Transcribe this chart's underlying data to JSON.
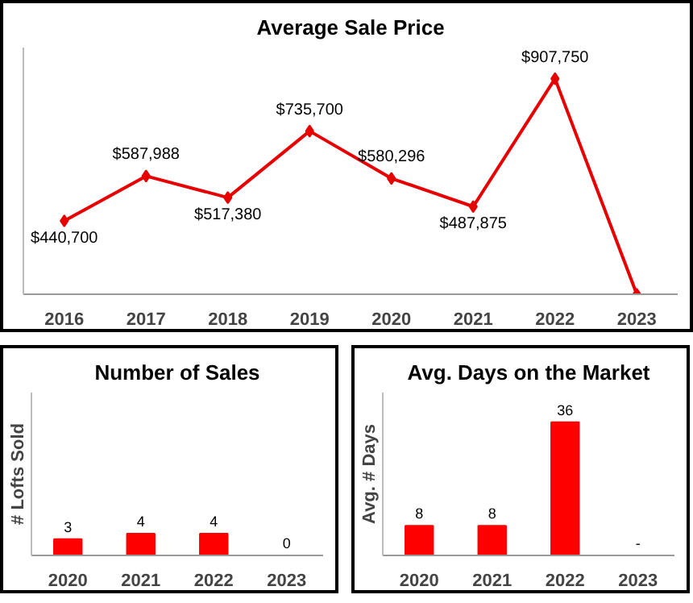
{
  "chart_data": [
    {
      "type": "line",
      "title": "Average Sale Price",
      "categories": [
        "2016",
        "2017",
        "2018",
        "2019",
        "2020",
        "2021",
        "2022",
        "2023"
      ],
      "values": [
        440700,
        587988,
        517380,
        735700,
        580296,
        487875,
        907750,
        200000
      ],
      "value_labels": [
        "$440,700",
        "$587,988",
        "$517,380",
        "$735,700",
        "$580,296",
        "$487,875",
        "$907,750",
        null
      ],
      "color": "#e60000",
      "marker": "diamond",
      "line_style": "solid",
      "ylim": [
        200000,
        1010000
      ],
      "tick_labels": "x",
      "grid": false
    },
    {
      "type": "bar",
      "title": "Number of Sales",
      "ylabel": "# Lofts Sold",
      "categories": [
        "2020",
        "2021",
        "2022",
        "2023"
      ],
      "values": [
        3,
        4,
        4,
        0
      ],
      "data_labels": true,
      "color": "#ff0000",
      "ylim": [
        0,
        30
      ],
      "tick_labels": "x",
      "grid": false
    },
    {
      "type": "bar",
      "title": "Avg. Days on the Market",
      "ylabel": "Avg. # Days",
      "categories": [
        "2020",
        "2021",
        "2022",
        "2023"
      ],
      "values": [
        8,
        8,
        36,
        null
      ],
      "value_labels": [
        "8",
        "8",
        "36",
        "-"
      ],
      "color": "#ff0000",
      "ylim": [
        0,
        44
      ],
      "tick_labels": "x",
      "grid": false
    }
  ]
}
